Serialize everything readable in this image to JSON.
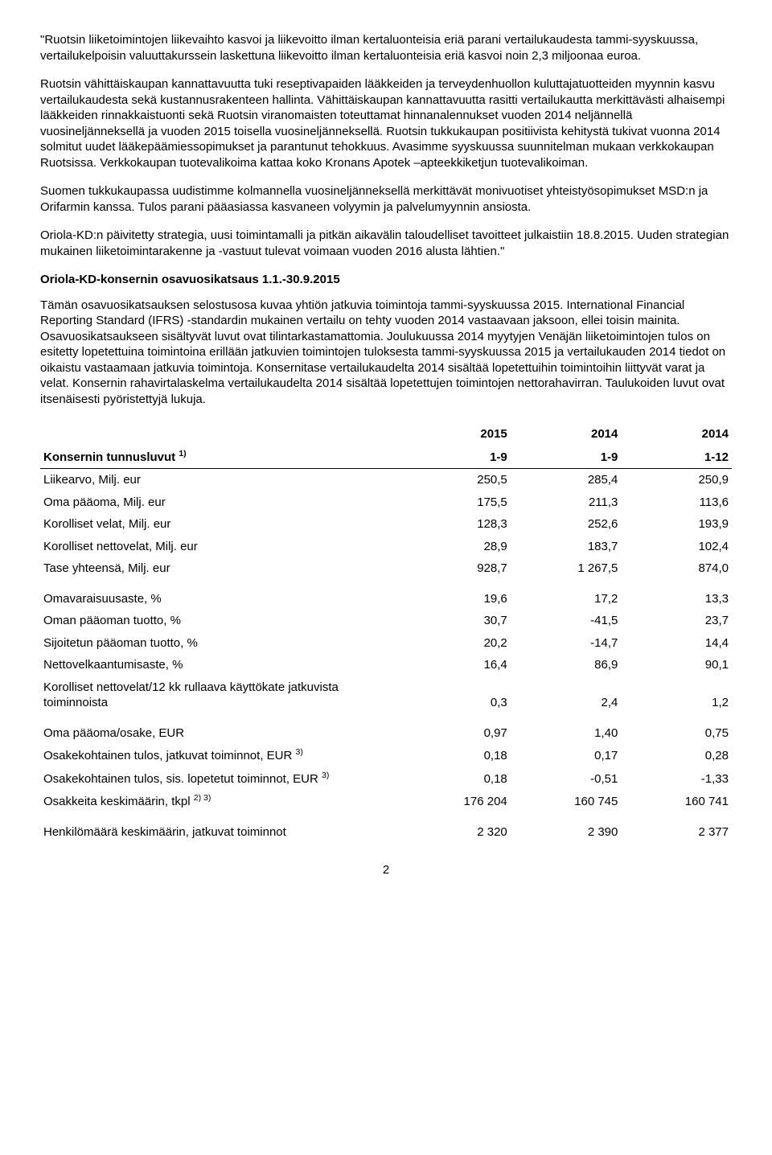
{
  "paragraphs": {
    "p1": "\"Ruotsin liiketoimintojen liikevaihto kasvoi ja liikevoitto ilman kertaluonteisia eriä parani vertailukaudesta tammi-syyskuussa, vertailukelpoisin valuuttakurssein laskettuna liikevoitto ilman kertaluonteisia eriä kasvoi noin 2,3 miljoonaa euroa.",
    "p2": "Ruotsin vähittäiskaupan kannattavuutta tuki reseptivapaiden lääkkeiden ja terveydenhuollon kuluttajatuotteiden myynnin kasvu vertailukaudesta sekä kustannusrakenteen hallinta. Vähittäiskaupan kannattavuutta rasitti vertailukautta merkittävästi alhaisempi lääkkeiden rinnakkaistuonti sekä Ruotsin viranomaisten toteuttamat hinnanalennukset vuoden 2014 neljännellä vuosineljänneksellä ja vuoden 2015 toisella vuosineljänneksellä. Ruotsin tukkukaupan positiivista kehitystä tukivat vuonna 2014 solmitut uudet lääkepäämiessopimukset ja parantunut tehokkuus. Avasimme syyskuussa suunnitelman mukaan verkkokaupan Ruotsissa. Verkkokaupan tuotevalikoima kattaa koko Kronans Apotek –apteekkiketjun tuotevalikoiman.",
    "p3": "Suomen tukkukaupassa uudistimme kolmannella vuosineljänneksellä merkittävät monivuotiset yhteistyösopimukset MSD:n ja Orifarmin kanssa. Tulos parani pääasiassa kasvaneen volyymin ja palvelumyynnin ansiosta.",
    "p4": "Oriola-KD:n päivitetty strategia, uusi toimintamalli ja pitkän aikavälin taloudelliset tavoitteet julkaistiin 18.8.2015. Uuden strategian mukainen liiketoimintarakenne ja -vastuut tulevat voimaan vuoden 2016 alusta lähtien.\"",
    "section_heading": "Oriola-KD-konsernin osavuosikatsaus 1.1.-30.9.2015",
    "p5": "Tämän osavuosikatsauksen selostusosa kuvaa yhtiön jatkuvia toimintoja tammi-syyskuussa 2015. International Financial Reporting Standard (IFRS) -standardin mukainen vertailu on tehty vuoden 2014 vastaavaan jaksoon, ellei toisin mainita. Osavuosikatsaukseen sisältyvät luvut ovat tilintarkastamattomia. Joulukuussa 2014 myytyjen Venäjän liiketoimintojen tulos on esitetty lopetettuina toimintoina erillään jatkuvien toimintojen tuloksesta tammi-syyskuussa 2015 ja vertailukauden 2014 tiedot on oikaistu vastaamaan jatkuvia toimintoja. Konsernitase vertailukaudelta 2014 sisältää lopetettuihin toimintoihin liittyvät varat ja velat. Konsernin rahavirtalaskelma vertailukaudelta 2014 sisältää lopetettujen toimintojen nettorahavirran. Taulukoiden luvut ovat itsenäisesti pyöristettyjä lukuja."
  },
  "table": {
    "header": {
      "label": "Konsernin tunnusluvut ",
      "label_sup": "1)",
      "y2015": "2015",
      "y2014a": "2014",
      "y2014b": "2014",
      "p1": "1-9",
      "p2": "1-9",
      "p3": "1-12"
    },
    "group1": [
      {
        "label": "Liikearvo, Milj. eur",
        "v1": "250,5",
        "v2": "285,4",
        "v3": "250,9"
      },
      {
        "label": "Oma pääoma, Milj. eur",
        "v1": "175,5",
        "v2": "211,3",
        "v3": "113,6"
      },
      {
        "label": "Korolliset velat, Milj. eur",
        "v1": "128,3",
        "v2": "252,6",
        "v3": "193,9"
      },
      {
        "label": "Korolliset nettovelat, Milj. eur",
        "v1": "28,9",
        "v2": "183,7",
        "v3": "102,4"
      },
      {
        "label": "Tase yhteensä, Milj. eur",
        "v1": "928,7",
        "v2": "1 267,5",
        "v3": "874,0"
      }
    ],
    "group2": [
      {
        "label": "Omavaraisuusaste, %",
        "v1": "19,6",
        "v2": "17,2",
        "v3": "13,3"
      },
      {
        "label": "Oman pääoman tuotto, %",
        "v1": "30,7",
        "v2": "-41,5",
        "v3": "23,7"
      },
      {
        "label": "Sijoitetun pääoman tuotto, %",
        "v1": "20,2",
        "v2": "-14,7",
        "v3": "14,4"
      },
      {
        "label": "Nettovelkaantumisaste, %",
        "v1": "16,4",
        "v2": "86,9",
        "v3": "90,1"
      },
      {
        "label": "Korolliset nettovelat/12 kk rullaava käyttökate jatkuvista toiminnoista",
        "v1": "0,3",
        "v2": "2,4",
        "v3": "1,2"
      }
    ],
    "group3": [
      {
        "label": "Oma pääoma/osake, EUR",
        "sup": "",
        "v1": "0,97",
        "v2": "1,40",
        "v3": "0,75"
      },
      {
        "label": "Osakekohtainen tulos, jatkuvat toiminnot, EUR ",
        "sup": "3)",
        "v1": "0,18",
        "v2": "0,17",
        "v3": "0,28"
      },
      {
        "label": "Osakekohtainen tulos, sis. lopetetut toiminnot, EUR  ",
        "sup": "3)",
        "v1": "0,18",
        "v2": "-0,51",
        "v3": "-1,33"
      },
      {
        "label": "Osakkeita keskimäärin, tkpl ",
        "sup": "2) 3)",
        "v1": "176 204",
        "v2": "160 745",
        "v3": "160 741"
      }
    ],
    "group4": [
      {
        "label": "Henkilömäärä keskimäärin, jatkuvat toiminnot",
        "v1": "2 320",
        "v2": "2 390",
        "v3": "2 377"
      }
    ]
  },
  "page_number": "2"
}
